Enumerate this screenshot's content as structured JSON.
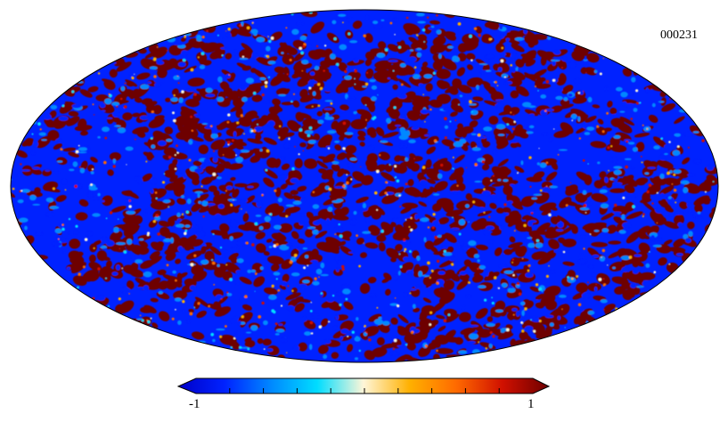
{
  "map": {
    "id_label": "000231",
    "projection": "mollweide",
    "colormap": [
      "#0000c8",
      "#0022ff",
      "#0088ff",
      "#00ddff",
      "#fff6d8",
      "#ffb000",
      "#ff6a00",
      "#d01000",
      "#6e0000"
    ],
    "background_color": "#0022ff",
    "high_color": "#6e0000"
  },
  "colorbar": {
    "min_label": "-1",
    "max_label": "1",
    "colors": [
      "#0000c8",
      "#0022ff",
      "#0088ff",
      "#00ddff",
      "#fff6d8",
      "#ffb000",
      "#ff6a00",
      "#d01000",
      "#6e0000"
    ]
  }
}
